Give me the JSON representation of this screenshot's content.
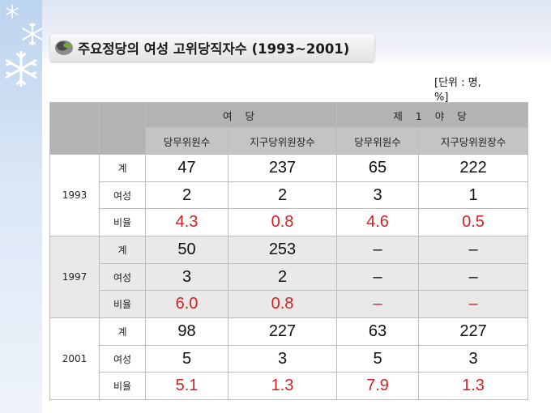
{
  "title": "주요정당의 여성 고위당직자수 (1993~2001)",
  "unit_note": "[단위 : 명, %]",
  "colors": {
    "ratio_red": "#d91e1e",
    "header_gray": "#b3b3b3"
  },
  "header": {
    "group_ruling": "여 당",
    "group_opposition": "제 1 야 당",
    "cols": [
      "당무위원수",
      "지구당위원장수",
      "당무위원수",
      "지구당위원장수"
    ]
  },
  "rows": [
    {
      "year": "1993",
      "items": [
        {
          "label": "계",
          "values": [
            "47",
            "237",
            "65",
            "222"
          ]
        },
        {
          "label": "여성",
          "values": [
            "2",
            "2",
            "3",
            "1"
          ]
        },
        {
          "label": "비율",
          "values": [
            "4.3",
            "0.8",
            "4.6",
            "0.5"
          ]
        }
      ]
    },
    {
      "year": "1997",
      "items": [
        {
          "label": "계",
          "values": [
            "50",
            "253",
            "–",
            "–"
          ]
        },
        {
          "label": "여성",
          "values": [
            "3",
            "2",
            "–",
            "–"
          ]
        },
        {
          "label": "비율",
          "values": [
            "6.0",
            "0.8",
            "–",
            "–"
          ]
        }
      ]
    },
    {
      "year": "2001",
      "items": [
        {
          "label": "계",
          "values": [
            "98",
            "227",
            "63",
            "227"
          ]
        },
        {
          "label": "여성",
          "values": [
            "5",
            "3",
            "5",
            "3"
          ]
        },
        {
          "label": "비율",
          "values": [
            "5.1",
            "1.3",
            "7.9",
            "1.3"
          ]
        }
      ]
    }
  ]
}
